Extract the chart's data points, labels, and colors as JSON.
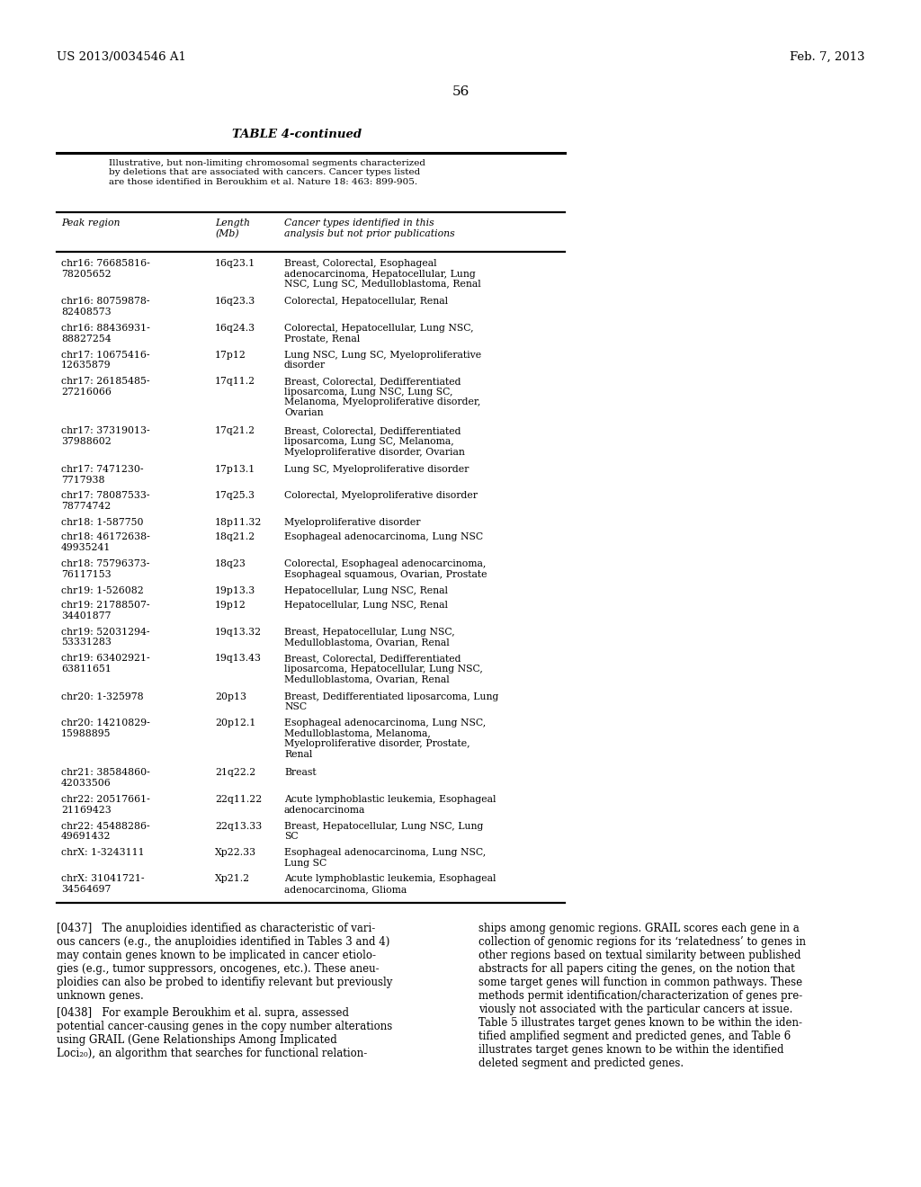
{
  "page_number": "56",
  "header_left": "US 2013/0034546 A1",
  "header_right": "Feb. 7, 2013",
  "table_title": "TABLE 4-continued",
  "table_note": "Illustrative, but non-limiting chromosomal segments characterized\nby deletions that are associated with cancers. Cancer types listed\nare those identified in Beroukhim et al. Nature 18: 463: 899-905.",
  "col_header_1": "Peak region",
  "col_header_2": "Length\n(Mb)",
  "col_header_3": "Cancer types identified in this\nanalysis but not prior publications",
  "rows": [
    [
      "chr16: 76685816-\n78205652",
      "16q23.1",
      "Breast, Colorectal, Esophageal\nadenоcarcinoma, Hepatocellular, Lung\nNSC, Lung SC, Medulloblastoma, Renal"
    ],
    [
      "chr16: 80759878-\n82408573",
      "16q23.3",
      "Colorectal, Hepatocellular, Renal"
    ],
    [
      "chr16: 88436931-\n88827254",
      "16q24.3",
      "Colorectal, Hepatocellular, Lung NSC,\nProstate, Renal"
    ],
    [
      "chr17: 10675416-\n12635879",
      "17p12",
      "Lung NSC, Lung SC, Myeloproliferative\ndisorder"
    ],
    [
      "chr17: 26185485-\n27216066",
      "17q11.2",
      "Breast, Colorectal, Dedifferentiated\nliposarcoma, Lung NSC, Lung SC,\nMelanoma, Myeloproliferative disorder,\nOvarian"
    ],
    [
      "chr17: 37319013-\n37988602",
      "17q21.2",
      "Breast, Colorectal, Dedifferentiated\nliposarcoma, Lung SC, Melanoma,\nMyeloproliferative disorder, Ovarian"
    ],
    [
      "chr17: 7471230-\n7717938",
      "17p13.1",
      "Lung SC, Myeloproliferative disorder"
    ],
    [
      "chr17: 78087533-\n78774742",
      "17q25.3",
      "Colorectal, Myeloproliferative disorder"
    ],
    [
      "chr18: 1-587750",
      "18p11.32",
      "Myeloproliferative disorder"
    ],
    [
      "chr18: 46172638-\n49935241",
      "18q21.2",
      "Esophageal adenocarcinoma, Lung NSC"
    ],
    [
      "chr18: 75796373-\n76117153",
      "18q23",
      "Colorectal, Esophageal adenocarcinoma,\nEsophageal squamous, Ovarian, Prostate"
    ],
    [
      "chr19: 1-526082",
      "19p13.3",
      "Hepatocellular, Lung NSC, Renal"
    ],
    [
      "chr19: 21788507-\n34401877",
      "19p12",
      "Hepatocellular, Lung NSC, Renal"
    ],
    [
      "chr19: 52031294-\n53331283",
      "19q13.32",
      "Breast, Hepatocellular, Lung NSC,\nMedulloblastoma, Ovarian, Renal"
    ],
    [
      "chr19: 63402921-\n63811651",
      "19q13.43",
      "Breast, Colorectal, Dedifferentiated\nliposarcoma, Hepatocellular, Lung NSC,\nMedulloblastoma, Ovarian, Renal"
    ],
    [
      "chr20: 1-325978",
      "20p13",
      "Breast, Dedifferentiated liposarcoma, Lung\nNSC"
    ],
    [
      "chr20: 14210829-\n15988895",
      "20p12.1",
      "Esophageal adenocarcinoma, Lung NSC,\nMedulloblastoma, Melanoma,\nMyeloproliferative disorder, Prostate,\nRenal"
    ],
    [
      "chr21: 38584860-\n42033506",
      "21q22.2",
      "Breast"
    ],
    [
      "chr22: 20517661-\n21169423",
      "22q11.22",
      "Acute lymphoblastic leukemia, Esophageal\nadenocarcinoma"
    ],
    [
      "chr22: 45488286-\n49691432",
      "22q13.33",
      "Breast, Hepatocellular, Lung NSC, Lung\nSC"
    ],
    [
      "chrX: 1-3243111",
      "Xp22.33",
      "Esophageal adenocarcinoma, Lung NSC,\nLung SC"
    ],
    [
      "chrX: 31041721-\n34564697",
      "Xp21.2",
      "Acute lymphoblastic leukemia, Esophageal\nadenocarcinoma, Glioma"
    ]
  ],
  "bottom_left_para1": "[0437]   The anuploidies identified as characteristic of vari-\nous cancers (e.g., the anuploidies identified in Tables 3 and 4)\nmay contain genes known to be implicated in cancer etiolo-\ngies (e.g., tumor suppressors, oncogenes, etc.). These aneu-\nploidies can also be probed to identifiy relevant but previously\nunknown genes.",
  "bottom_left_para2": "[0438]   For example Beroukhim et al. supra, assessed\npotential cancer-causing genes in the copy number alterations\nusing GRAIL (Gene Relationships Among Implicated\nLoci₂₀), an algorithm that searches for functional relation-",
  "bottom_right_para": "ships among genomic regions. GRAIL scores each gene in a\ncollection of genomic regions for its ‘relatedness’ to genes in\nother regions based on textual similarity between published\nabstracts for all papers citing the genes, on the notion that\nsome target genes will function in common pathways. These\nmethods permit identification/characterization of genes pre-\nviously not associated with the particular cancers at issue.\nTable 5 illustrates target genes known to be within the iden-\ntified amplified segment and predicted genes, and Table 6\nillustrates target genes known to be within the identified\ndeleted segment and predicted genes.",
  "bg_color": "#ffffff"
}
